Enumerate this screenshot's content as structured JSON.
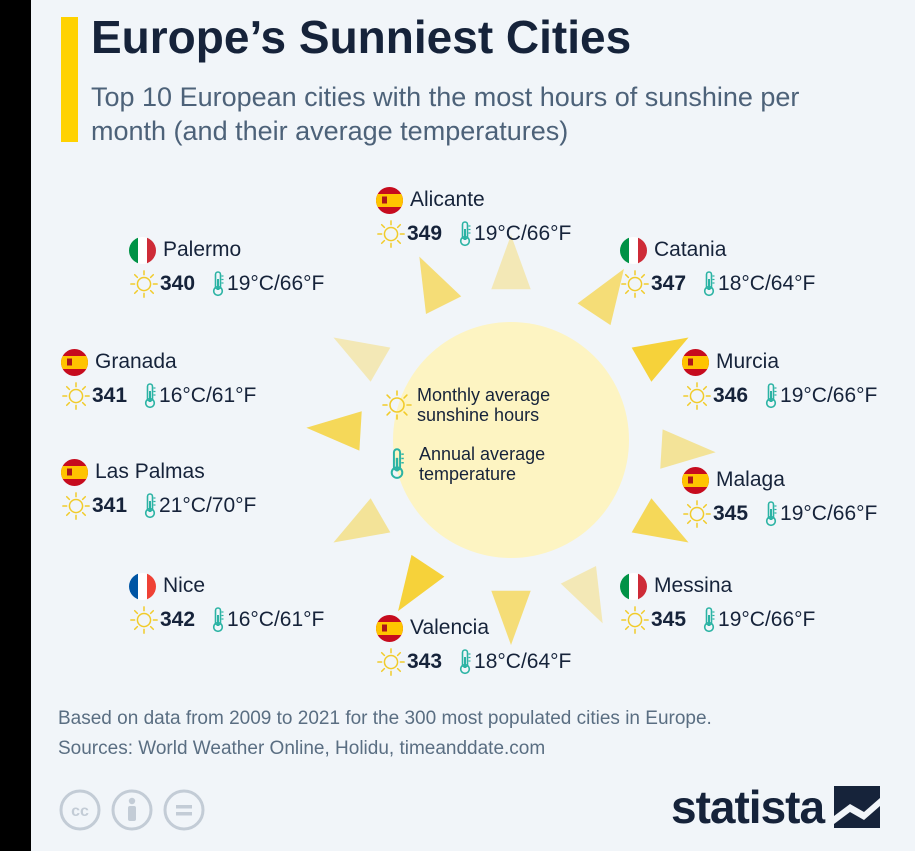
{
  "title": "Europe’s Sunniest Cities",
  "subtitle": "Top 10 European cities with the most hours of sunshine per month (and their average temperatures)",
  "legend": {
    "hours_label": "Monthly average sunshine hours",
    "temp_label": "Annual average temperature"
  },
  "colors": {
    "accent": "#ffd200",
    "sun_disc": "#fdf4c2",
    "sun_ray": "#f6d23a",
    "icon_sun": "#f1cb2a",
    "thermometer": "#2bb3a4",
    "text_dark": "#16233a"
  },
  "chart_data": {
    "type": "table",
    "title": "Europe’s Sunniest Cities",
    "columns": [
      "city",
      "country",
      "sunshine_hours_per_month",
      "avg_temperature"
    ],
    "rows": [
      {
        "city": "Alicante",
        "country": "Spain",
        "flag": "es",
        "hours": "349",
        "temp": "19°C/66°F"
      },
      {
        "city": "Catania",
        "country": "Italy",
        "flag": "it",
        "hours": "347",
        "temp": "18°C/64°F"
      },
      {
        "city": "Murcia",
        "country": "Spain",
        "flag": "es",
        "hours": "346",
        "temp": "19°C/66°F"
      },
      {
        "city": "Malaga",
        "country": "Spain",
        "flag": "es",
        "hours": "345",
        "temp": "19°C/66°F"
      },
      {
        "city": "Messina",
        "country": "Italy",
        "flag": "it",
        "hours": "345",
        "temp": "19°C/66°F"
      },
      {
        "city": "Valencia",
        "country": "Spain",
        "flag": "es",
        "hours": "343",
        "temp": "18°C/64°F"
      },
      {
        "city": "Nice",
        "country": "France",
        "flag": "fr",
        "hours": "342",
        "temp": "16°C/61°F"
      },
      {
        "city": "Las Palmas",
        "country": "Spain",
        "flag": "es",
        "hours": "341",
        "temp": "21°C/70°F"
      },
      {
        "city": "Granada",
        "country": "Spain",
        "flag": "es",
        "hours": "341",
        "temp": "16°C/61°F"
      },
      {
        "city": "Palermo",
        "country": "Italy",
        "flag": "it",
        "hours": "340",
        "temp": "19°C/66°F"
      }
    ]
  },
  "footer": {
    "note": "Based on data from 2009 to 2021 for the 300 most populated cities in Europe.",
    "sources": "Sources: World Weather Online, Holidu, timeanddate.com"
  },
  "brand": {
    "name": "statista"
  },
  "icons": {
    "sun": "sun-icon",
    "thermometer": "thermometer-icon",
    "license": [
      "cc-icon",
      "attribution-icon",
      "no-derivatives-icon"
    ],
    "logo": "statista-logo-icon"
  }
}
